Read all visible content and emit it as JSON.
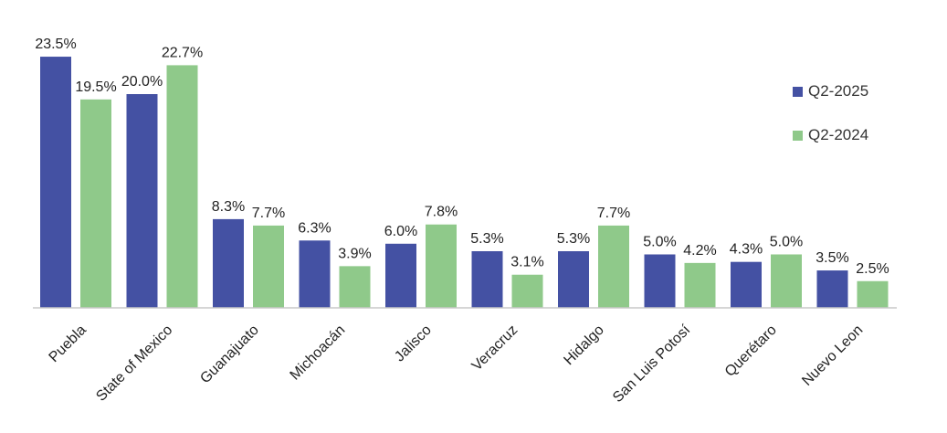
{
  "chart_data": {
    "type": "bar",
    "title": "",
    "xlabel": "",
    "ylabel": "",
    "ylim": [
      0,
      25
    ],
    "grid": false,
    "legend_position": "right",
    "value_format": "percent-1dp",
    "categories": [
      "Puebla",
      "State of Mexico",
      "Guanajuato",
      "Michoacán",
      "Jalisco",
      "Veracruz",
      "Hidalgo",
      "San Luis Potosí",
      "Querétaro",
      "Nuevo Leon"
    ],
    "series": [
      {
        "name": "Q2-2025",
        "color": "#4451a3",
        "values": [
          23.5,
          20.0,
          8.3,
          6.3,
          6.0,
          5.3,
          5.3,
          5.0,
          4.3,
          3.5
        ]
      },
      {
        "name": "Q2-2024",
        "color": "#8fc98a",
        "values": [
          19.5,
          22.7,
          7.7,
          3.9,
          7.8,
          3.1,
          7.7,
          4.2,
          5.0,
          2.5
        ]
      }
    ]
  }
}
